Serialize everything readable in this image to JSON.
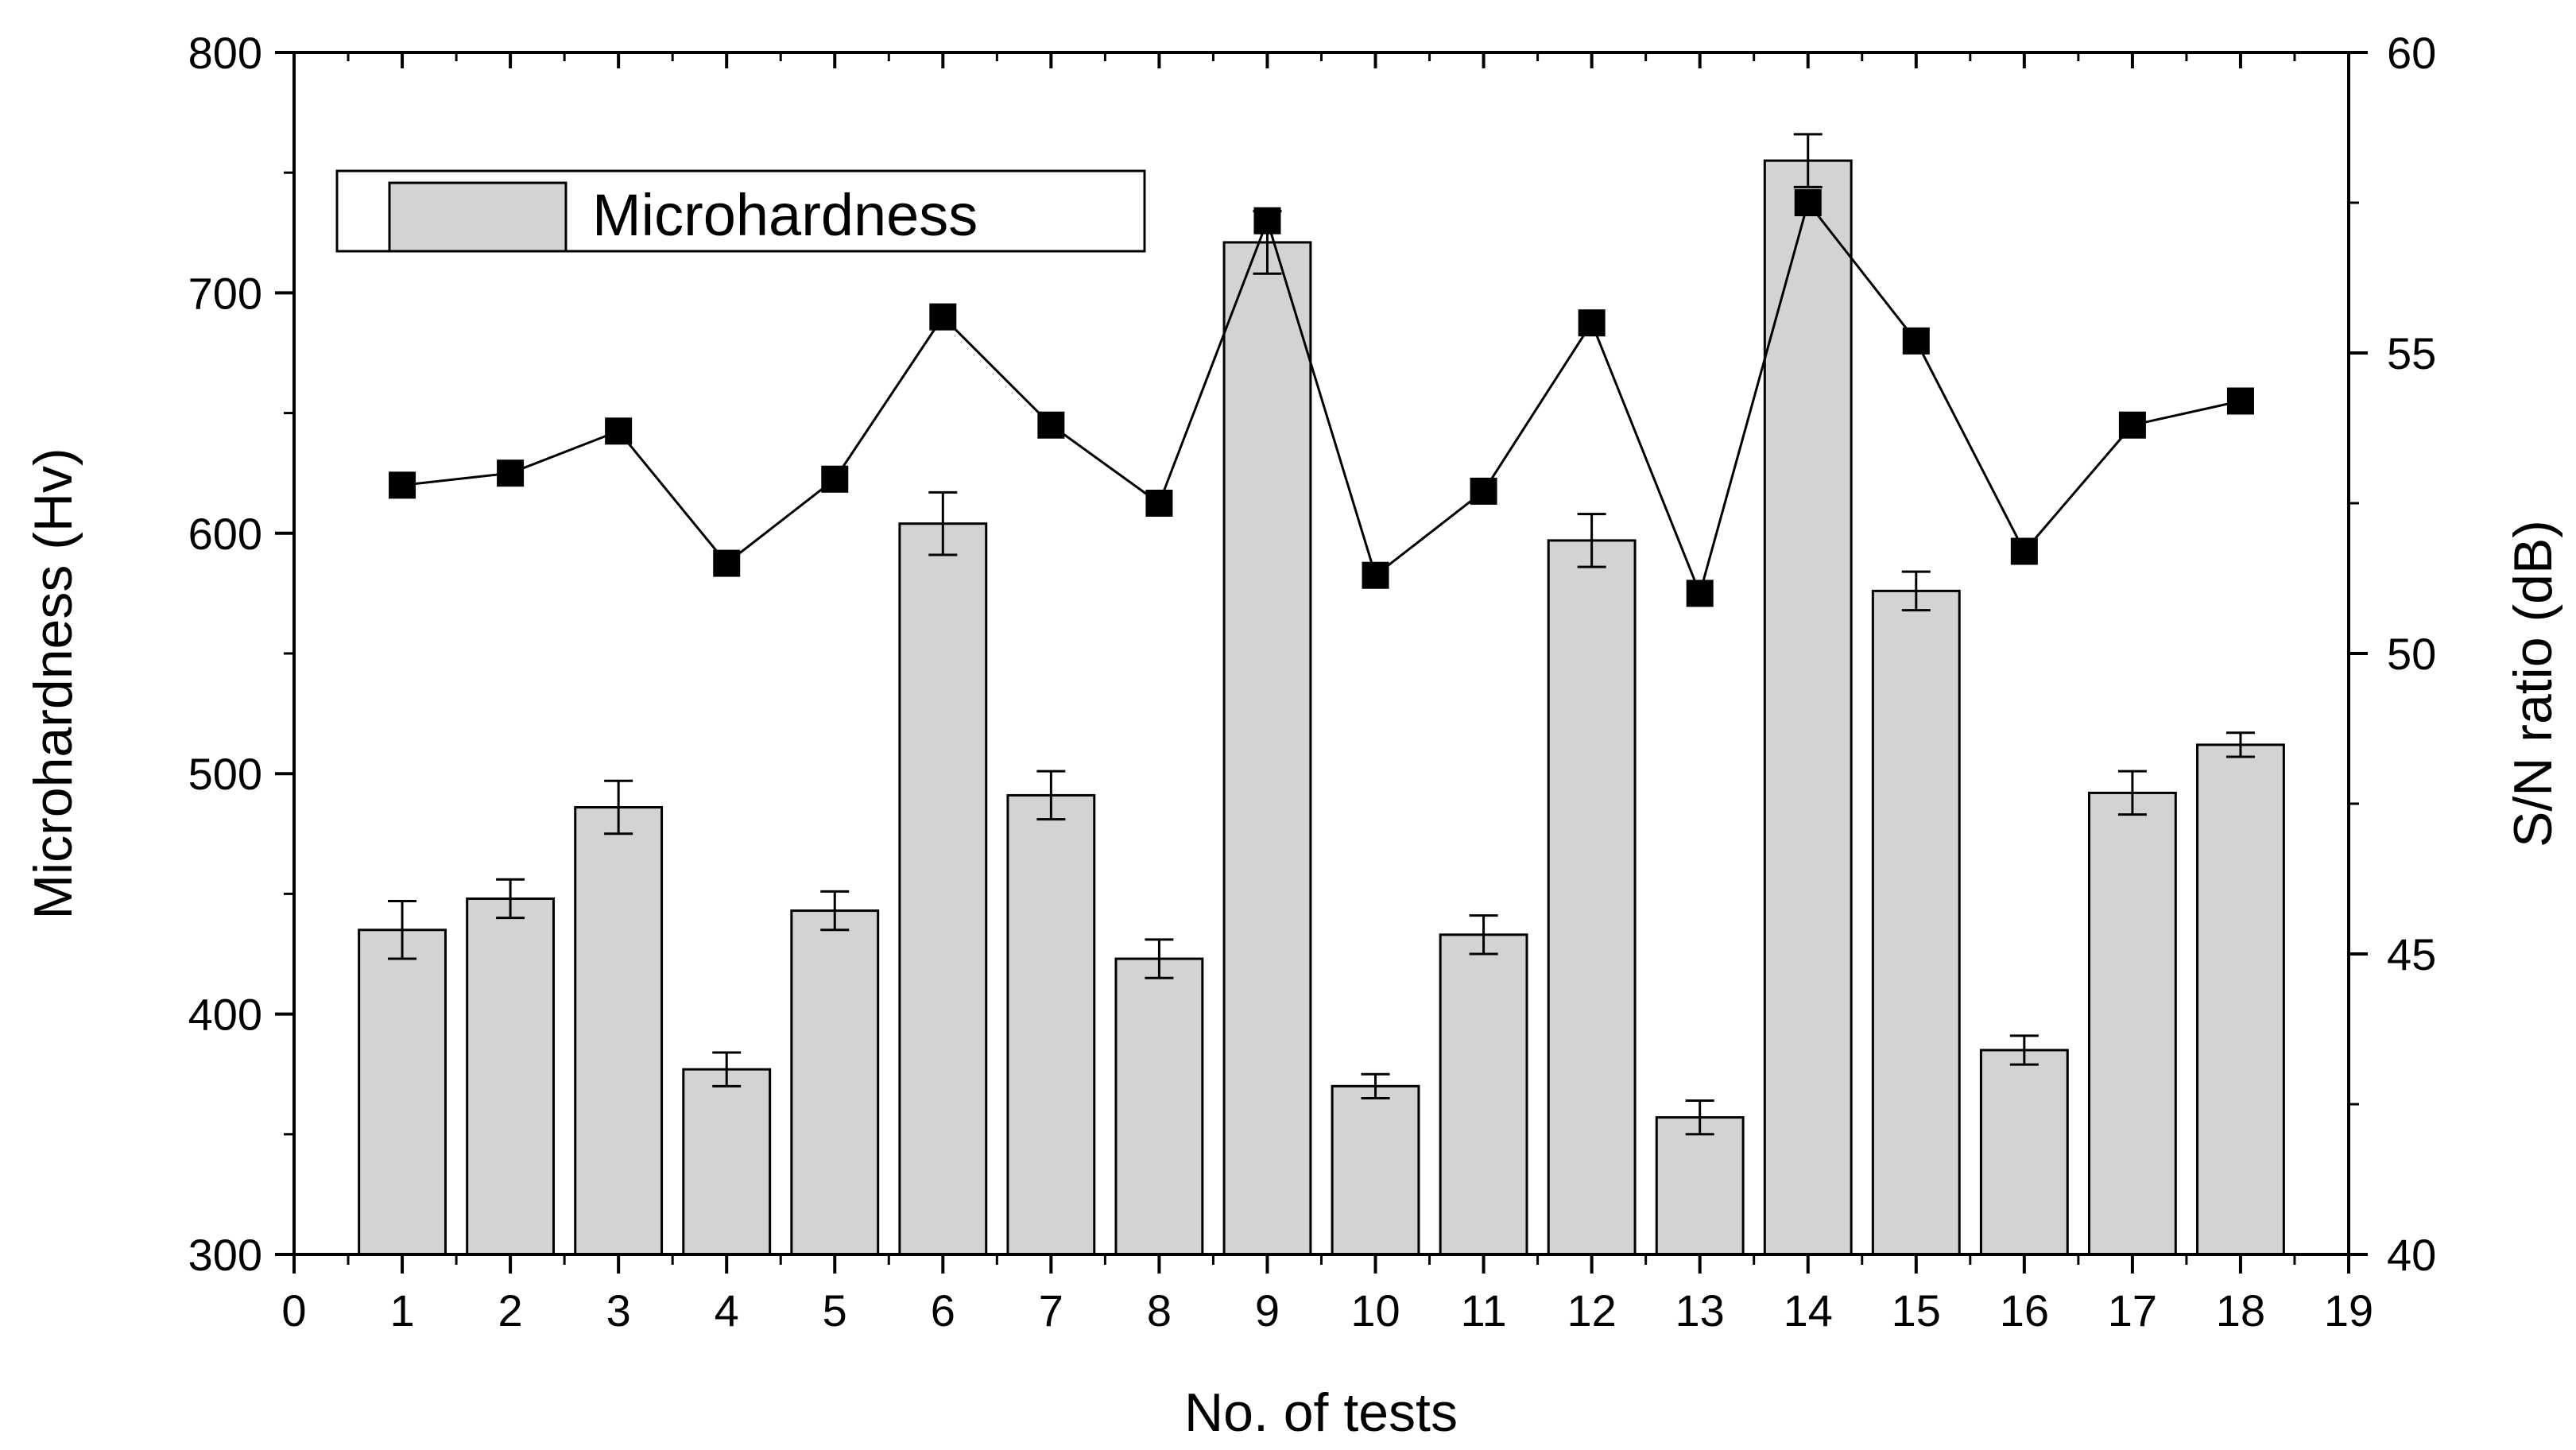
{
  "chart_data": {
    "type": "bar",
    "xlabel": "No. of tests",
    "ylabel_left": "Microhardness (Hv)",
    "ylabel_right": "S/N ratio (dB)",
    "xlim": [
      0,
      19
    ],
    "ylim_left": [
      300,
      800
    ],
    "ylim_right": [
      40,
      60
    ],
    "x_ticks": [
      0,
      1,
      2,
      3,
      4,
      5,
      6,
      7,
      8,
      9,
      10,
      11,
      12,
      13,
      14,
      15,
      16,
      17,
      18,
      19
    ],
    "y_ticks_left": [
      300,
      400,
      500,
      600,
      700,
      800
    ],
    "y_ticks_right": [
      40,
      45,
      50,
      55,
      60
    ],
    "legend": {
      "label": "Microhardness",
      "position": "top-left"
    },
    "bar_color": "#d3d3d3",
    "line_color": "#000000",
    "categories": [
      1,
      2,
      3,
      4,
      5,
      6,
      7,
      8,
      9,
      10,
      11,
      12,
      13,
      14,
      15,
      16,
      17,
      18
    ],
    "series": [
      {
        "name": "Microhardness",
        "type": "bar",
        "axis": "left",
        "values": [
          435,
          448,
          486,
          377,
          443,
          604,
          491,
          423,
          721,
          370,
          433,
          597,
          357,
          755,
          576,
          385,
          492,
          512
        ],
        "errors": [
          12,
          8,
          11,
          7,
          8,
          13,
          10,
          8,
          13,
          5,
          8,
          11,
          7,
          11,
          8,
          6,
          9,
          5
        ]
      },
      {
        "name": "S/N ratio",
        "type": "line",
        "axis": "right",
        "marker": "square",
        "values": [
          52.8,
          53.0,
          53.7,
          51.5,
          52.9,
          55.6,
          53.8,
          52.5,
          57.2,
          51.3,
          52.7,
          55.5,
          51.0,
          57.5,
          55.2,
          51.7,
          53.8,
          54.2
        ],
        "segments": [
          [
            1,
            2
          ],
          [
            2,
            3
          ],
          [
            3,
            4
          ],
          [
            4,
            5
          ],
          [
            5,
            6
          ],
          [
            6,
            7
          ],
          [
            7,
            8
          ],
          [
            8,
            9
          ],
          [
            9,
            10
          ],
          [
            10,
            11
          ],
          [
            11,
            12
          ],
          [
            12,
            13
          ],
          [
            13,
            14
          ],
          [
            14,
            15
          ],
          [
            15,
            16
          ],
          [
            16,
            17
          ],
          [
            17,
            18
          ]
        ]
      }
    ]
  }
}
